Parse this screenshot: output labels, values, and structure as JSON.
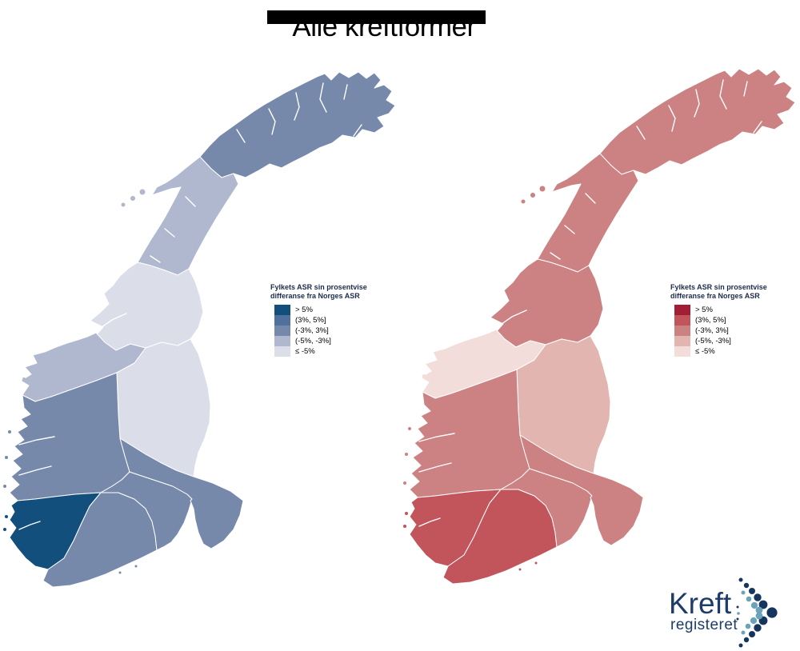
{
  "title": "Alle kreftformer",
  "legend": {
    "title_line1": "Fylkets ASR sin prosentvise",
    "title_line2": "differanse fra Norges ASR",
    "labels": [
      "> 5%",
      "(3%, 5%]",
      "(-3%, 3%]",
      "(-5%, -3%]",
      "≤ -5%"
    ]
  },
  "maps": {
    "left": {
      "scheme": "blue",
      "palette": [
        "#124F7C",
        "#50719E",
        "#7689AB",
        "#AFB8CE",
        "#DBDEE9"
      ],
      "regions": {
        "troms_og_finnmark": 2,
        "nordland": 3,
        "trondelag": 4,
        "more_og_romsdal": 3,
        "innlandet": 4,
        "vestland": 2,
        "rogaland": 0,
        "agder": 2,
        "vestfold_og_telemark": 2,
        "viken_oslo": 2
      }
    },
    "right": {
      "scheme": "red",
      "palette": [
        "#A21E35",
        "#C2545C",
        "#CC8183",
        "#E2B5B0",
        "#F2DDDA"
      ],
      "regions": {
        "troms_og_finnmark": 2,
        "nordland": 2,
        "trondelag": 2,
        "more_og_romsdal": 4,
        "innlandet": 3,
        "vestland": 2,
        "rogaland": 1,
        "agder": 1,
        "vestfold_og_telemark": 2,
        "viken_oslo": 2
      }
    }
  },
  "logo": {
    "text_top": "Kreft",
    "text_bottom": "registeret",
    "navy": "#16355E",
    "light_blue": "#6BA3BB"
  }
}
